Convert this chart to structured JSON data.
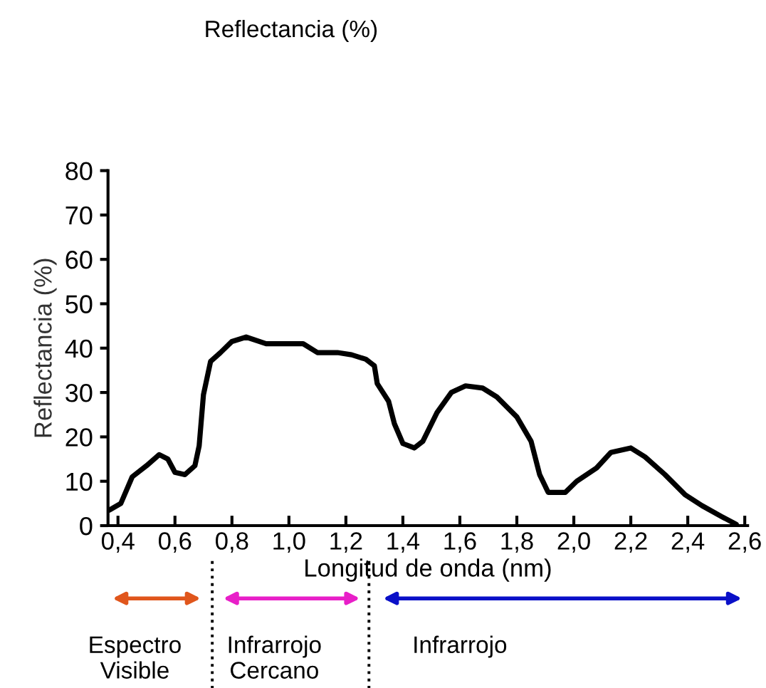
{
  "chart_data": {
    "type": "line",
    "title": "Reflectancia (%)",
    "xlabel": "Longitud de onda (nm)",
    "ylabel": "Reflectancia (%)",
    "x": [
      0.37,
      0.41,
      0.45,
      0.5,
      0.545,
      0.575,
      0.6,
      0.635,
      0.67,
      0.685,
      0.7,
      0.725,
      0.76,
      0.8,
      0.85,
      0.92,
      1.0,
      1.05,
      1.1,
      1.17,
      1.22,
      1.27,
      1.3,
      1.31,
      1.35,
      1.37,
      1.4,
      1.44,
      1.47,
      1.52,
      1.57,
      1.62,
      1.68,
      1.73,
      1.8,
      1.85,
      1.88,
      1.91,
      1.97,
      2.01,
      2.08,
      2.13,
      2.2,
      2.25,
      2.32,
      2.39,
      2.45,
      2.52,
      2.57
    ],
    "series": [
      {
        "color": "#000000",
        "values": [
          3.5,
          5,
          11,
          13.5,
          16,
          15,
          12,
          11.5,
          13.5,
          18,
          29.5,
          37,
          39,
          41.5,
          42.5,
          41,
          41,
          41,
          39,
          39,
          38.5,
          37.5,
          36,
          32,
          28,
          23,
          18.5,
          17.5,
          19,
          25.5,
          30,
          31.5,
          31,
          29,
          24.5,
          19,
          11.5,
          7.5,
          7.5,
          10,
          13,
          16.5,
          17.5,
          15.5,
          11.5,
          7,
          4.5,
          2,
          0.3
        ]
      }
    ],
    "xlim": [
      0.365,
      2.61
    ],
    "ylim": [
      0,
      80
    ],
    "xticks": [
      {
        "value": 0.4,
        "label": "0,4"
      },
      {
        "value": 0.6,
        "label": "0,6"
      },
      {
        "value": 0.8,
        "label": "0,8"
      },
      {
        "value": 1.0,
        "label": "1,0"
      },
      {
        "value": 1.2,
        "label": "1,2"
      },
      {
        "value": 1.4,
        "label": "1,4"
      },
      {
        "value": 1.6,
        "label": "1,6"
      },
      {
        "value": 1.8,
        "label": "1,8"
      },
      {
        "value": 2.0,
        "label": "2,0"
      },
      {
        "value": 2.2,
        "label": "2,2"
      },
      {
        "value": 2.4,
        "label": "2,4"
      },
      {
        "value": 2.6,
        "label": "2,6"
      }
    ],
    "yticks": [
      0,
      10,
      20,
      30,
      40,
      50,
      60,
      70,
      80
    ],
    "annotations": [
      "Espectro\nVisible",
      "Infrarrojo\nCercano",
      "Infrarrojo"
    ],
    "grid": false,
    "marker": "none",
    "line_style": "solid"
  }
}
